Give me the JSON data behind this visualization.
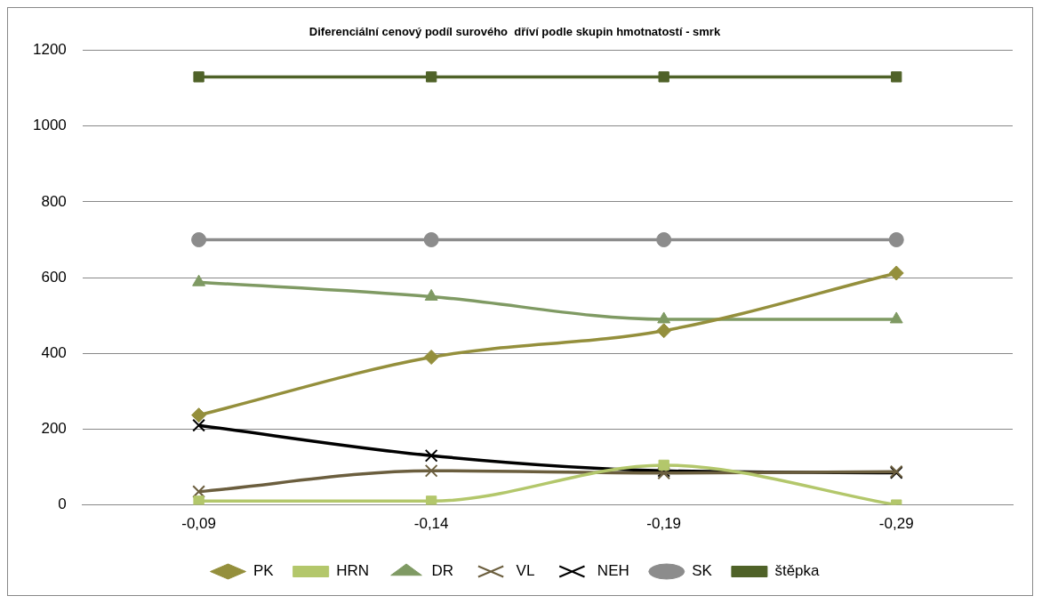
{
  "chart_data": {
    "type": "line",
    "title": "Diferenciální cenový podíl surového  dříví podle skupin hmotnatostí - smrk",
    "categories": [
      "-0,09",
      "-0,14",
      "-0,19",
      "-0,29"
    ],
    "series": [
      {
        "name": "PK",
        "color": "#948f3c",
        "marker": "diamond",
        "values": [
          237,
          390,
          460,
          612
        ]
      },
      {
        "name": "HRN",
        "color": "#b3c76b",
        "marker": "square",
        "values": [
          10,
          10,
          105,
          0
        ]
      },
      {
        "name": "DR",
        "color": "#7f9a63",
        "marker": "triangle",
        "values": [
          588,
          550,
          490,
          490
        ]
      },
      {
        "name": "VL",
        "color": "#6b5e3e",
        "marker": "cross",
        "values": [
          35,
          90,
          84,
          88
        ]
      },
      {
        "name": "NEH",
        "color": "#000000",
        "marker": "cross",
        "values": [
          210,
          130,
          90,
          85
        ]
      },
      {
        "name": "SK",
        "color": "#8c8c8c",
        "marker": "circle",
        "values": [
          700,
          700,
          700,
          700
        ]
      },
      {
        "name": "štěpka",
        "color": "#4f6228",
        "marker": "square",
        "values": [
          1130,
          1130,
          1130,
          1130
        ]
      }
    ],
    "ylim": [
      0,
      1200
    ],
    "yticks": [
      0,
      200,
      400,
      600,
      800,
      1000,
      1200
    ],
    "grid": "y",
    "legend": "bottom"
  }
}
